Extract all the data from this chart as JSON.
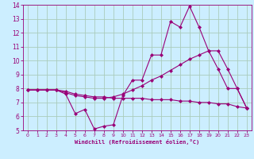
{
  "xlabel": "Windchill (Refroidissement éolien,°C)",
  "bg_color": "#cceeff",
  "grid_color": "#aaccbb",
  "line_color": "#990077",
  "xlim": [
    -0.5,
    23.5
  ],
  "ylim": [
    5,
    14
  ],
  "yticks": [
    5,
    6,
    7,
    8,
    9,
    10,
    11,
    12,
    13,
    14
  ],
  "xticks": [
    0,
    1,
    2,
    3,
    4,
    5,
    6,
    7,
    8,
    9,
    10,
    11,
    12,
    13,
    14,
    15,
    16,
    17,
    18,
    19,
    20,
    21,
    22,
    23
  ],
  "series1_x": [
    0,
    1,
    2,
    3,
    4,
    5,
    6,
    7,
    8,
    9,
    10,
    11,
    12,
    13,
    14,
    15,
    16,
    17,
    18,
    19,
    20,
    21,
    22,
    23
  ],
  "series1_y": [
    7.9,
    7.9,
    7.9,
    7.9,
    7.6,
    6.2,
    6.5,
    5.1,
    5.3,
    5.4,
    7.5,
    8.6,
    8.6,
    10.4,
    10.4,
    12.8,
    12.4,
    13.9,
    12.4,
    10.7,
    9.4,
    8.0,
    8.0,
    6.6
  ],
  "series2_x": [
    0,
    1,
    2,
    3,
    4,
    5,
    6,
    7,
    8,
    9,
    10,
    11,
    12,
    13,
    14,
    15,
    16,
    17,
    18,
    19,
    20,
    21,
    22,
    23
  ],
  "series2_y": [
    7.9,
    7.9,
    7.9,
    7.9,
    7.7,
    7.5,
    7.4,
    7.3,
    7.3,
    7.4,
    7.6,
    7.9,
    8.2,
    8.6,
    8.9,
    9.3,
    9.7,
    10.1,
    10.4,
    10.7,
    10.7,
    9.4,
    8.0,
    6.6
  ],
  "series3_x": [
    0,
    1,
    2,
    3,
    4,
    5,
    6,
    7,
    8,
    9,
    10,
    11,
    12,
    13,
    14,
    15,
    16,
    17,
    18,
    19,
    20,
    21,
    22,
    23
  ],
  "series3_y": [
    7.9,
    7.9,
    7.9,
    7.9,
    7.8,
    7.6,
    7.5,
    7.4,
    7.4,
    7.3,
    7.3,
    7.3,
    7.3,
    7.2,
    7.2,
    7.2,
    7.1,
    7.1,
    7.0,
    7.0,
    6.9,
    6.9,
    6.7,
    6.6
  ]
}
